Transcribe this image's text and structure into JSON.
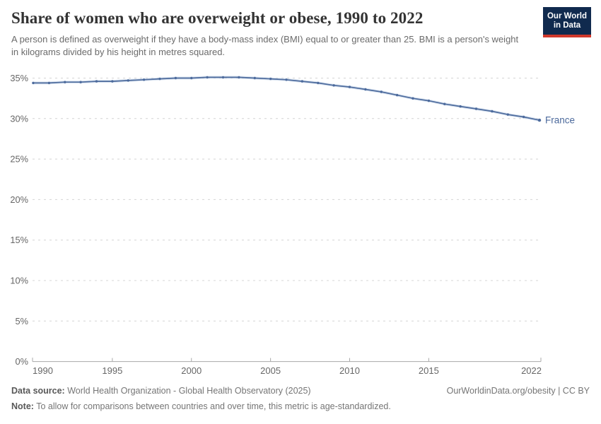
{
  "header": {
    "title": "Share of women who are overweight or obese, 1990 to 2022",
    "subtitle": "A person is defined as overweight if they have a body-mass index (BMI) equal to or greater than 25. BMI is a person's weight in kilograms divided by his height in metres squared.",
    "logo": {
      "line1": "Our World",
      "line2": "in Data"
    }
  },
  "chart_data": {
    "type": "line",
    "title": "Share of women who are overweight or obese, 1990 to 2022",
    "xlabel": "",
    "ylabel": "",
    "ylim": [
      0,
      35
    ],
    "yticks": [
      0,
      5,
      10,
      15,
      20,
      25,
      30,
      35
    ],
    "ytick_suffix": "%",
    "xticks": [
      1990,
      1995,
      2000,
      2005,
      2010,
      2015,
      2022
    ],
    "grid": "horizontal-dashed",
    "legend_position": "end-of-line",
    "x": [
      1990,
      1991,
      1992,
      1993,
      1994,
      1995,
      1996,
      1997,
      1998,
      1999,
      2000,
      2001,
      2002,
      2003,
      2004,
      2005,
      2006,
      2007,
      2008,
      2009,
      2010,
      2011,
      2012,
      2013,
      2014,
      2015,
      2016,
      2017,
      2018,
      2019,
      2020,
      2021,
      2022
    ],
    "series": [
      {
        "name": "France",
        "color": "#4C6A9C",
        "values": [
          34.4,
          34.4,
          34.5,
          34.5,
          34.6,
          34.6,
          34.7,
          34.8,
          34.9,
          35.0,
          35.0,
          35.1,
          35.1,
          35.1,
          35.0,
          34.9,
          34.8,
          34.6,
          34.4,
          34.1,
          33.9,
          33.6,
          33.3,
          32.9,
          32.5,
          32.2,
          31.8,
          31.5,
          31.2,
          30.9,
          30.5,
          30.2,
          29.8
        ]
      }
    ]
  },
  "footer": {
    "datasource_label": "Data source:",
    "datasource_text": "World Health Organization - Global Health Observatory (2025)",
    "link_text": "OurWorldinData.org/obesity | CC BY",
    "note_label": "Note:",
    "note_text": "To allow for comparisons between countries and over time, this metric is age-standardized."
  },
  "colors": {
    "line": "#4C6A9C",
    "line_halo": "#bccde6",
    "grid": "#d4d4d4",
    "axis": "#a8a8a8",
    "tick_label": "#666666",
    "logo_bg": "#102a4e",
    "logo_stripe": "#d0382c"
  }
}
